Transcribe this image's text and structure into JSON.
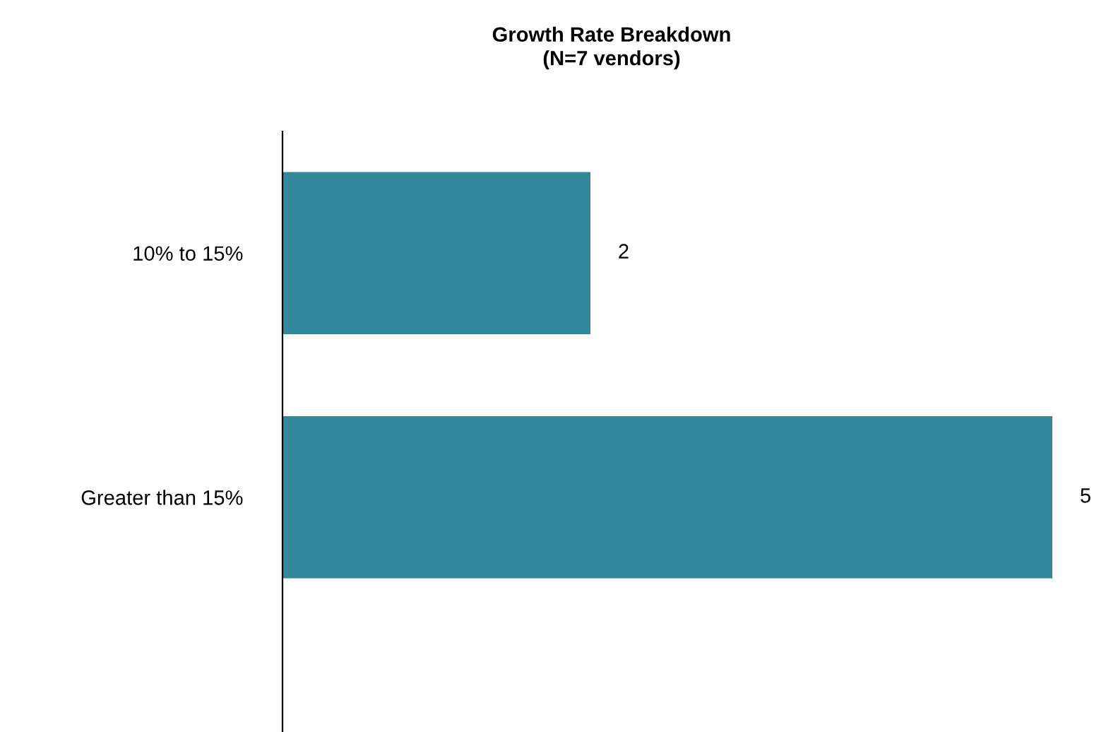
{
  "chart_data": {
    "type": "bar",
    "orientation": "horizontal",
    "title": "Growth Rate Breakdown\n(N=7 vendors)",
    "categories": [
      "10% to 15%",
      "Greater than 15%"
    ],
    "values": [
      2,
      5
    ],
    "color": "#33879b",
    "data_labels": true,
    "grid": false,
    "legend": false
  }
}
